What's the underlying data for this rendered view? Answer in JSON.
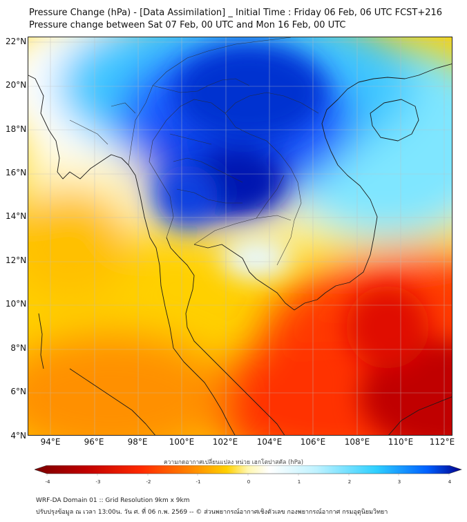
{
  "title_line1": "Pressure Change (hPa) - [Data Assimilation] _ Initial Time : Friday 06 Feb, 06 UTC FCST+216",
  "title_line2": "Pressure change between Sat 07 Feb, 00 UTC and Mon 16 Feb, 00 UTC",
  "lat_labels": [
    "22°N",
    "20°N",
    "18°N",
    "16°N",
    "14°N",
    "12°N",
    "10°N",
    "8°N",
    "6°N",
    "4°N"
  ],
  "lon_labels": [
    "94°E",
    "96°E",
    "98°E",
    "100°E",
    "102°E",
    "104°E",
    "106°E",
    "108°E",
    "110°E",
    "112°E"
  ],
  "colorbar": {
    "title": "ความกดอากาศเปลี่ยนแปลง หน่วย เฮกโตปาสคัล (hPa)",
    "tick_labels": [
      "-4",
      "-3",
      "-2",
      "-1",
      "0",
      "1",
      "2",
      "3",
      "4"
    ],
    "colors": [
      "#7a0000",
      "#c00000",
      "#ff2a00",
      "#ff8a00",
      "#ffd000",
      "#fff7b0",
      "#ffffff",
      "#bff2ff",
      "#2fd0ff",
      "#0060ff",
      "#00008a"
    ]
  },
  "footer_line1": "WRF-DA Domain 01 :: Grid Resolution 9km x 9km",
  "footer_line2": "ปรับปรุงข้อมูล ณ เวลา 13:00น. วัน ศ. ที่ 06 ก.พ. 2569 -- © ส่วนพยากรณ์อากาศเชิงตัวเลข กองพยากรณ์อากาศ กรมอุตุนิยมวิทยา"
}
